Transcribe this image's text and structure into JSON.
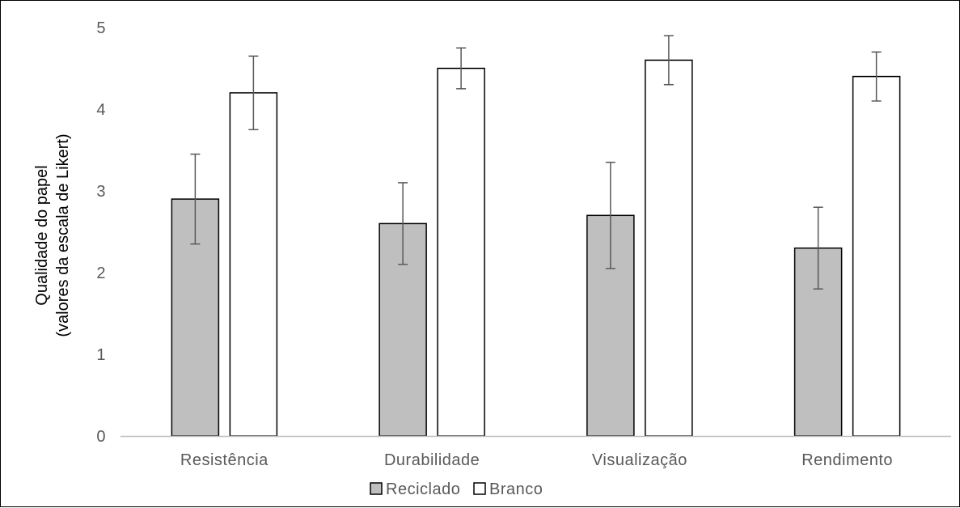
{
  "chart_data": {
    "type": "bar",
    "categories": [
      "Resistência",
      "Durabilidade",
      "Visualização",
      "Rendimento"
    ],
    "series": [
      {
        "name": "Reciclado",
        "values": [
          2.9,
          2.6,
          2.7,
          2.3
        ],
        "error_low": [
          2.35,
          2.1,
          2.05,
          1.8
        ],
        "error_high": [
          3.45,
          3.1,
          3.35,
          2.8
        ],
        "color": "#bfbfbf"
      },
      {
        "name": "Branco",
        "values": [
          4.2,
          4.5,
          4.6,
          4.4
        ],
        "error_low": [
          3.75,
          4.25,
          4.3,
          4.1
        ],
        "error_high": [
          4.65,
          4.75,
          4.9,
          4.7
        ],
        "color": "#ffffff"
      }
    ],
    "title": "",
    "xlabel": "",
    "ylabel": [
      "Qualidade do papel",
      "(valores da escala de Likert)"
    ],
    "ylim": [
      0,
      5
    ],
    "yticks": [
      "0",
      "1",
      "2",
      "3",
      "4",
      "5"
    ],
    "grid": false,
    "legend_position": "bottom",
    "bar_edge_color": "#000000",
    "errorbar_color": "#595959"
  }
}
